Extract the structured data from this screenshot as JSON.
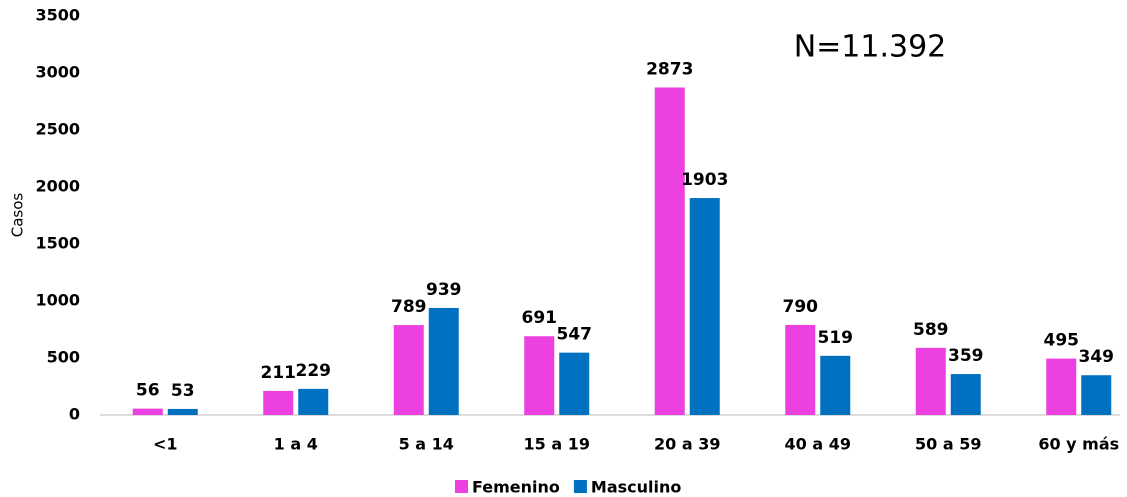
{
  "chart_data": {
    "type": "bar",
    "annotation": "N=11.392",
    "y_label": "Casos",
    "categories": [
      "<1",
      "1 a 4",
      "5 a 14",
      "15 a 19",
      "20 a 39",
      "40 a 49",
      "50 a 59",
      "60 y más"
    ],
    "series": [
      {
        "name": "Femenino",
        "color": "#ec41e0",
        "values": [
          56,
          211,
          789,
          691,
          2873,
          790,
          589,
          495
        ]
      },
      {
        "name": "Masculino",
        "color": "#0070c0",
        "values": [
          53,
          229,
          939,
          547,
          1903,
          519,
          359,
          349
        ]
      }
    ],
    "ylim": [
      0,
      3500
    ],
    "yticks": [
      0,
      500,
      1000,
      1500,
      2000,
      2500,
      3000,
      3500
    ],
    "grid": false,
    "legend": "bottom"
  }
}
